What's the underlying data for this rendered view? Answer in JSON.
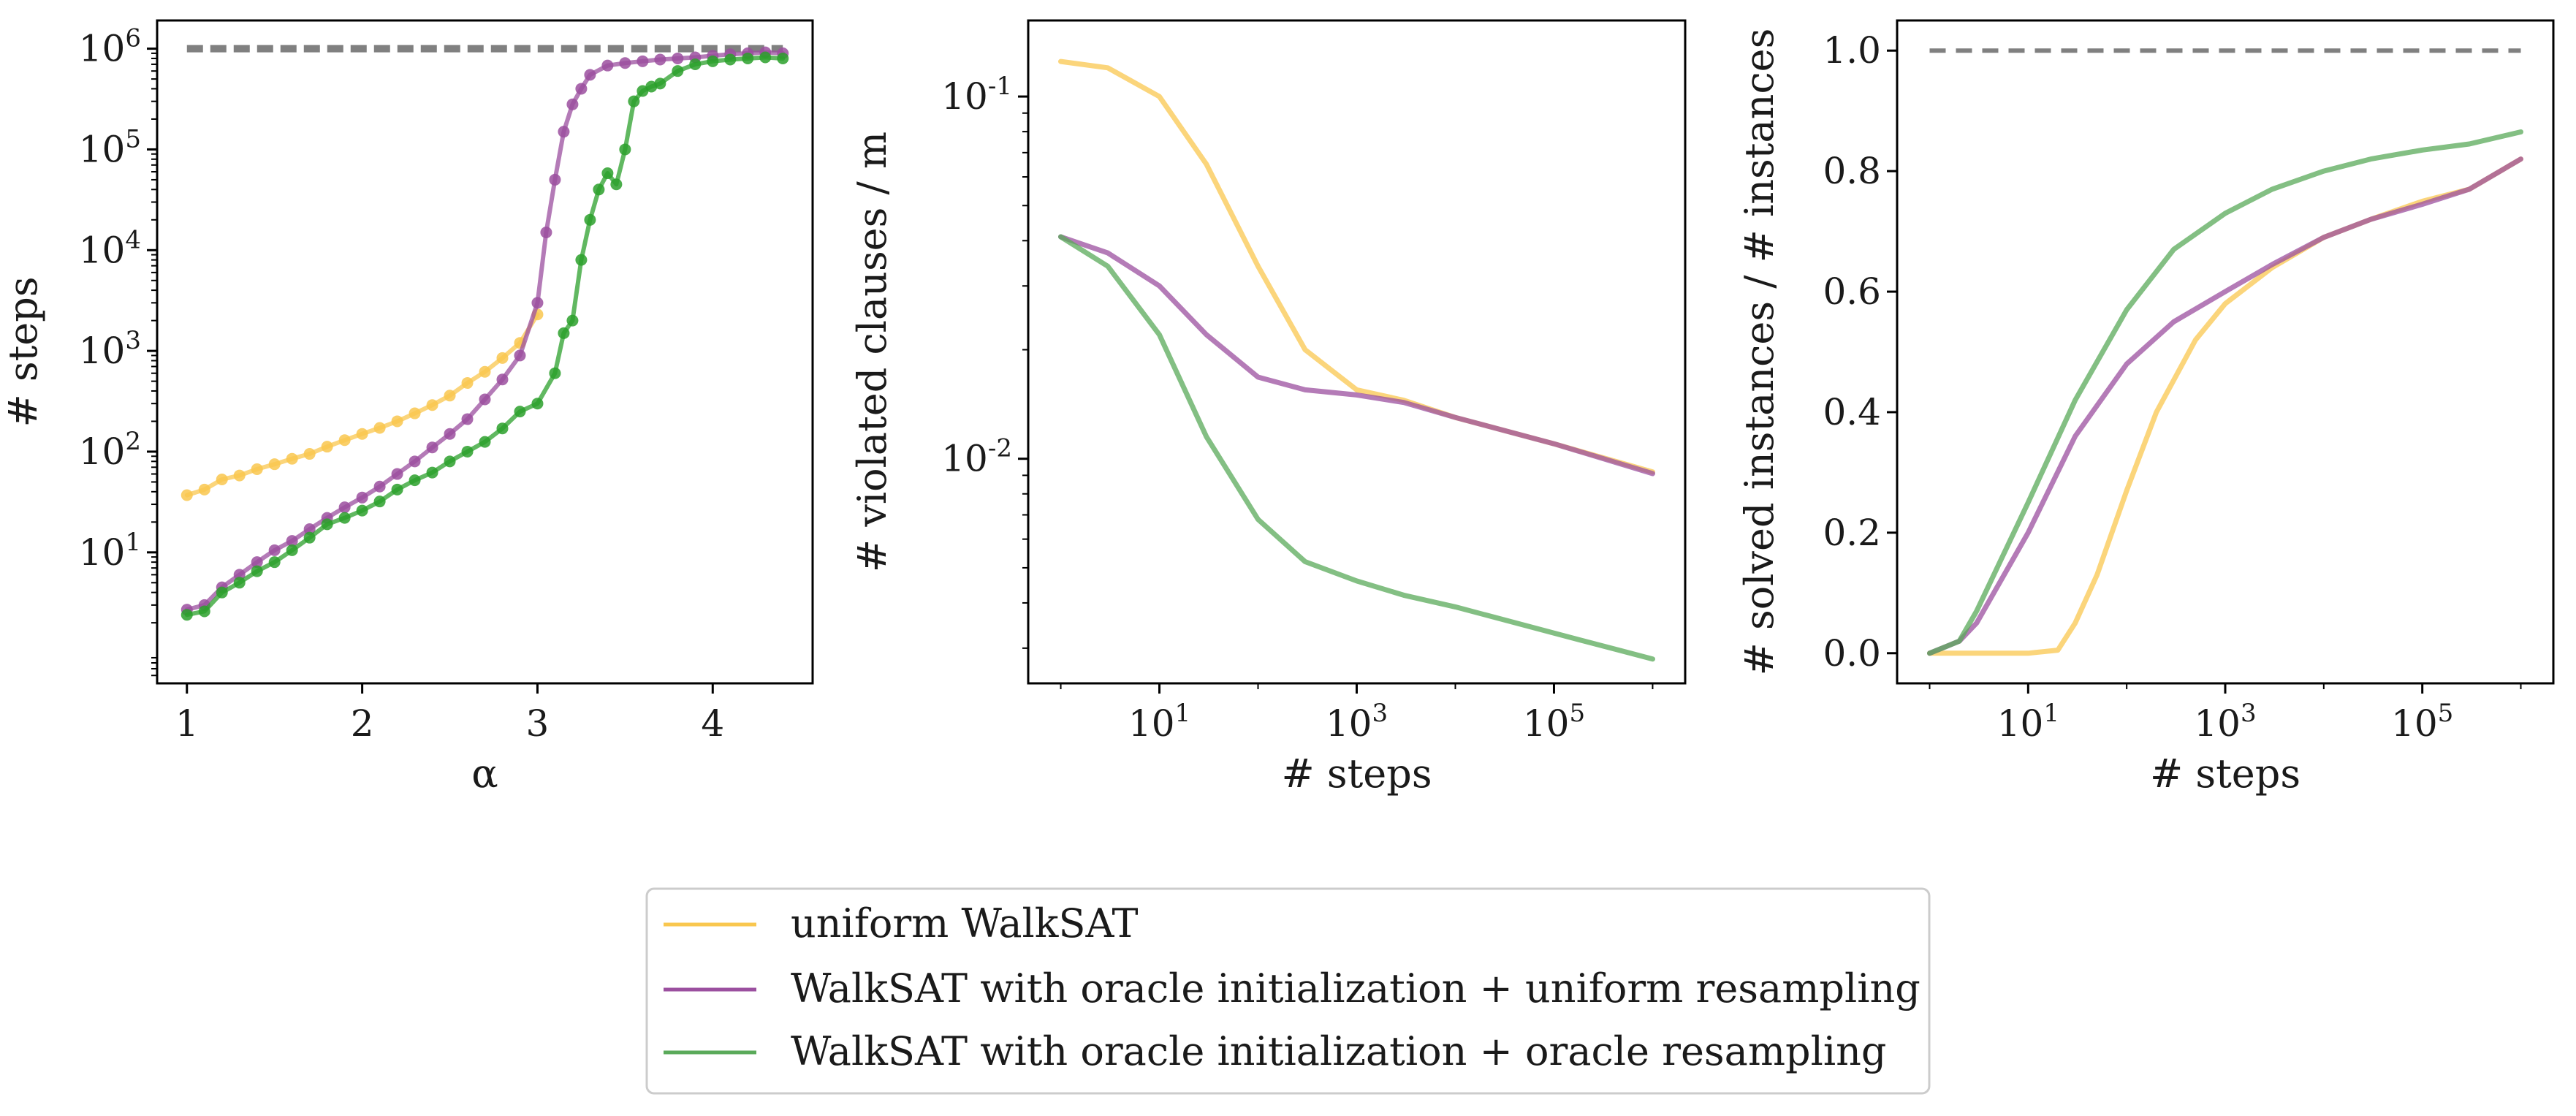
{
  "legend": {
    "placement": "bottom-center",
    "entries": [
      {
        "label": "uniform WalkSAT",
        "color": "#f9c74f"
      },
      {
        "label": "WalkSAT with oracle initialization + uniform resampling",
        "color": "#9b4f9f"
      },
      {
        "label": "WalkSAT with oracle initialization + oracle resampling",
        "color": "#5aaa5a"
      }
    ]
  },
  "chart_data": [
    {
      "type": "line",
      "xlabel": "α",
      "ylabel": "# steps",
      "xscale": "linear",
      "yscale": "log",
      "xlim": [
        0.83,
        4.57
      ],
      "ylim_log10": [
        -0.3,
        6.28
      ],
      "xticks": [
        {
          "v": 1,
          "label": "1"
        },
        {
          "v": 2,
          "label": "2"
        },
        {
          "v": 3,
          "label": "3"
        },
        {
          "v": 4,
          "label": "4"
        }
      ],
      "yticks": [
        {
          "exp": 1,
          "label": "10"
        },
        {
          "exp": 2,
          "label": "10"
        },
        {
          "exp": 3,
          "label": "10"
        },
        {
          "exp": 4,
          "label": "10"
        },
        {
          "exp": 5,
          "label": "10"
        },
        {
          "exp": 6,
          "label": "10"
        }
      ],
      "reference_line": {
        "y": 1000000,
        "x_from": 1,
        "x_to": 4.4,
        "style": "dashed",
        "color": "#808080"
      },
      "markers": true,
      "series": [
        {
          "color": "#f9c74f",
          "x": [
            1.0,
            1.1,
            1.2,
            1.3,
            1.4,
            1.5,
            1.6,
            1.7,
            1.8,
            1.9,
            2.0,
            2.1,
            2.2,
            2.3,
            2.4,
            2.5,
            2.6,
            2.7,
            2.8,
            2.9,
            3.0
          ],
          "y": [
            37,
            42,
            53,
            58,
            67,
            75,
            85,
            95,
            112,
            130,
            150,
            172,
            200,
            240,
            290,
            360,
            480,
            620,
            850,
            1200,
            2300
          ]
        },
        {
          "color": "#9b4f9f",
          "x": [
            1.0,
            1.1,
            1.2,
            1.3,
            1.4,
            1.5,
            1.6,
            1.7,
            1.8,
            1.9,
            2.0,
            2.1,
            2.2,
            2.3,
            2.4,
            2.5,
            2.6,
            2.7,
            2.8,
            2.9,
            3.0,
            3.05,
            3.1,
            3.15,
            3.2,
            3.25,
            3.3,
            3.4,
            3.5,
            3.6,
            3.7,
            3.8,
            3.9,
            4.0,
            4.1,
            4.2,
            4.3,
            4.4
          ],
          "y": [
            2.7,
            3,
            4.5,
            6,
            8,
            10.5,
            13,
            17,
            22,
            28,
            35,
            45,
            60,
            80,
            110,
            150,
            210,
            330,
            520,
            900,
            3000,
            15000,
            50000,
            150000,
            280000,
            400000,
            550000,
            680000,
            720000,
            750000,
            780000,
            800000,
            820000,
            850000,
            880000,
            900000,
            920000,
            900000
          ]
        },
        {
          "color": "#2ca02c",
          "x": [
            1.0,
            1.1,
            1.2,
            1.3,
            1.4,
            1.5,
            1.6,
            1.7,
            1.8,
            1.9,
            2.0,
            2.1,
            2.2,
            2.3,
            2.4,
            2.5,
            2.6,
            2.7,
            2.8,
            2.9,
            3.0,
            3.1,
            3.15,
            3.2,
            3.25,
            3.3,
            3.35,
            3.4,
            3.45,
            3.5,
            3.55,
            3.6,
            3.65,
            3.7,
            3.8,
            3.9,
            4.0,
            4.1,
            4.2,
            4.3,
            4.4
          ],
          "y": [
            2.4,
            2.6,
            4,
            5,
            6.5,
            8,
            10.5,
            14,
            19,
            22,
            26,
            32,
            42,
            52,
            62,
            80,
            100,
            125,
            170,
            250,
            300,
            600,
            1500,
            2000,
            8000,
            20000,
            40000,
            58000,
            45000,
            100000,
            300000,
            380000,
            420000,
            450000,
            600000,
            700000,
            750000,
            780000,
            800000,
            820000,
            800000
          ]
        }
      ]
    },
    {
      "type": "line",
      "xlabel": "# steps",
      "ylabel": "# violated clauses / m",
      "xscale": "log",
      "yscale": "log",
      "xlim_log10": [
        -0.33,
        6.33
      ],
      "ylim_log10": [
        -2.62,
        -0.79
      ],
      "xticks": [
        {
          "exp": 1,
          "label": "10"
        },
        {
          "exp": 3,
          "label": "10"
        },
        {
          "exp": 5,
          "label": "10"
        }
      ],
      "yticks": [
        {
          "exp": -2,
          "label": "10"
        },
        {
          "exp": -1,
          "label": "10"
        }
      ],
      "series": [
        {
          "color": "#f9c74f",
          "x": [
            1,
            3,
            10,
            30,
            100,
            300,
            1000,
            3000,
            10000,
            100000,
            1000000
          ],
          "y": [
            0.125,
            0.12,
            0.1,
            0.065,
            0.034,
            0.02,
            0.0155,
            0.0145,
            0.013,
            0.011,
            0.0092
          ]
        },
        {
          "color": "#9b4f9f",
          "x": [
            1,
            3,
            10,
            30,
            100,
            300,
            1000,
            3000,
            10000,
            100000,
            1000000
          ],
          "y": [
            0.041,
            0.037,
            0.03,
            0.022,
            0.0168,
            0.0155,
            0.015,
            0.0143,
            0.013,
            0.011,
            0.0091
          ]
        },
        {
          "color": "#5aaa5a",
          "x": [
            1,
            3,
            10,
            30,
            100,
            300,
            1000,
            3000,
            10000,
            100000,
            1000000
          ],
          "y": [
            0.041,
            0.034,
            0.022,
            0.0115,
            0.0068,
            0.0052,
            0.0046,
            0.0042,
            0.0039,
            0.0033,
            0.0028
          ]
        }
      ]
    },
    {
      "type": "line",
      "xlabel": "# steps",
      "ylabel": "# solved instances / # instances",
      "xscale": "log",
      "yscale": "linear",
      "xlim_log10": [
        -0.33,
        6.33
      ],
      "ylim": [
        -0.05,
        1.05
      ],
      "xticks": [
        {
          "exp": 1,
          "label": "10"
        },
        {
          "exp": 3,
          "label": "10"
        },
        {
          "exp": 5,
          "label": "10"
        }
      ],
      "yticks": [
        {
          "v": 0.0,
          "label": "0.0"
        },
        {
          "v": 0.2,
          "label": "0.2"
        },
        {
          "v": 0.4,
          "label": "0.4"
        },
        {
          "v": 0.6,
          "label": "0.6"
        },
        {
          "v": 0.8,
          "label": "0.8"
        },
        {
          "v": 1.0,
          "label": "1.0"
        }
      ],
      "reference_line": {
        "y": 1.0,
        "x_from": 1,
        "x_to": 1000000,
        "style": "dashed",
        "color": "#808080"
      },
      "series": [
        {
          "color": "#f9c74f",
          "x": [
            1,
            3,
            10,
            20,
            30,
            50,
            100,
            200,
            500,
            1000,
            3000,
            10000,
            30000,
            100000,
            300000,
            1000000
          ],
          "y": [
            0,
            0,
            0,
            0.005,
            0.05,
            0.13,
            0.27,
            0.4,
            0.52,
            0.58,
            0.64,
            0.69,
            0.72,
            0.75,
            0.77,
            0.82
          ]
        },
        {
          "color": "#9b4f9f",
          "x": [
            1,
            2,
            3,
            10,
            30,
            100,
            300,
            1000,
            3000,
            10000,
            30000,
            100000,
            300000,
            1000000
          ],
          "y": [
            0,
            0.02,
            0.05,
            0.2,
            0.36,
            0.48,
            0.55,
            0.6,
            0.645,
            0.69,
            0.72,
            0.745,
            0.77,
            0.82
          ]
        },
        {
          "color": "#5aaa5a",
          "x": [
            1,
            2,
            3,
            10,
            30,
            100,
            300,
            1000,
            3000,
            10000,
            30000,
            100000,
            300000,
            1000000
          ],
          "y": [
            0,
            0.02,
            0.07,
            0.25,
            0.42,
            0.57,
            0.67,
            0.73,
            0.77,
            0.8,
            0.82,
            0.835,
            0.845,
            0.865
          ]
        }
      ]
    }
  ]
}
